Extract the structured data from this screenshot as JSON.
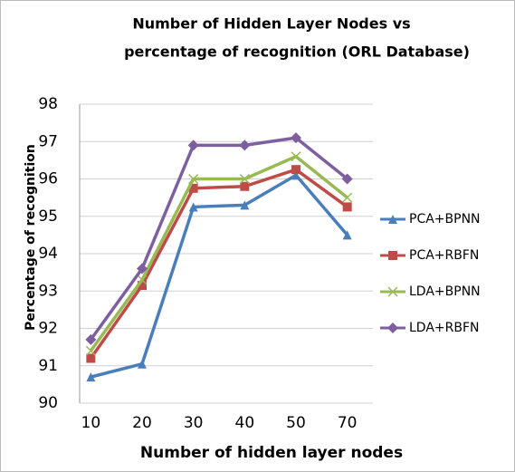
{
  "chart_data": {
    "type": "line",
    "title": [
      "Number of Hidden Layer Nodes vs",
      "percentage of recognition (ORL Database)"
    ],
    "x_label": "Number of hidden layer nodes",
    "y_label": "Percentage of recognition",
    "categories": [
      "10",
      "20",
      "30",
      "40",
      "50",
      "70"
    ],
    "series": [
      {
        "name": "PCA+BPNN",
        "color": "#4a7ebb",
        "marker": "triangle",
        "values": [
          90.7,
          91.05,
          95.25,
          95.3,
          96.1,
          94.5
        ]
      },
      {
        "name": "PCA+RBFN",
        "color": "#be4b48",
        "marker": "square",
        "values": [
          91.2,
          93.15,
          95.75,
          95.8,
          96.25,
          95.25
        ]
      },
      {
        "name": "LDA+BPNN",
        "color": "#98b954",
        "marker": "x",
        "values": [
          91.4,
          93.3,
          96.0,
          96.0,
          96.6,
          95.5
        ]
      },
      {
        "name": "LDA+RBFN",
        "color": "#7d5fa0",
        "marker": "diamond",
        "values": [
          91.7,
          93.6,
          96.9,
          96.9,
          97.1,
          96.0
        ]
      }
    ],
    "ylim": [
      90,
      98
    ],
    "yticks": [
      90,
      91,
      92,
      93,
      94,
      95,
      96,
      97,
      98
    ],
    "grid": true,
    "legend": "right"
  }
}
